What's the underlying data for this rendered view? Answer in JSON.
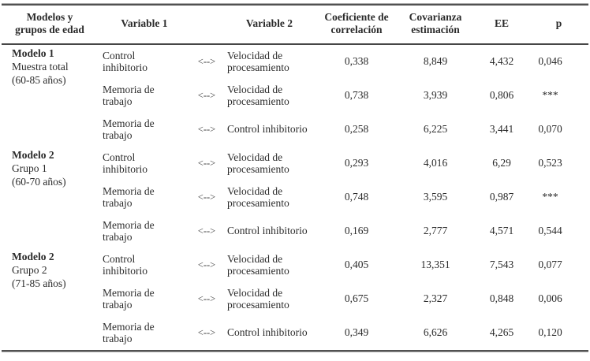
{
  "table": {
    "columns": [
      {
        "key": "model",
        "label": "Modelos y\ngrupos de edad"
      },
      {
        "key": "var1",
        "label": "Variable 1"
      },
      {
        "key": "arrow",
        "label": ""
      },
      {
        "key": "var2",
        "label": "Variable 2"
      },
      {
        "key": "coef",
        "label": "Coeficiente de\ncorrelación"
      },
      {
        "key": "cov",
        "label": "Covarianza\nestimación"
      },
      {
        "key": "ee",
        "label": "EE"
      },
      {
        "key": "p",
        "label": "p"
      }
    ],
    "arrow_glyph": "<-->",
    "groups": [
      {
        "model_lines": [
          "Modelo 1",
          "Muestra total",
          "(60-85 años)"
        ],
        "rows": [
          {
            "var1": "Control\ninhibitorio",
            "var2": "Velocidad de\nprocesamiento",
            "coef": "0,338",
            "cov": "8,849",
            "ee": "4,432",
            "p": "0,046"
          },
          {
            "var1": "Memoria de\ntrabajo",
            "var2": "Velocidad de\nprocesamiento",
            "coef": "0,738",
            "cov": "3,939",
            "ee": "0,806",
            "p": "***"
          },
          {
            "var1": "Memoria de\ntrabajo",
            "var2": "Control inhibitorio",
            "coef": "0,258",
            "cov": "6,225",
            "ee": "3,441",
            "p": "0,070"
          }
        ]
      },
      {
        "model_lines": [
          "Modelo 2",
          "Grupo 1",
          "(60-70 años)"
        ],
        "rows": [
          {
            "var1": "Control\ninhibitorio",
            "var2": "Velocidad de\nprocesamiento",
            "coef": "0,293",
            "cov": "4,016",
            "ee": "6,29",
            "p": "0,523"
          },
          {
            "var1": "Memoria de\ntrabajo",
            "var2": "Velocidad de\nprocesamiento",
            "coef": "0,748",
            "cov": "3,595",
            "ee": "0,987",
            "p": "***"
          },
          {
            "var1": "Memoria de\ntrabajo",
            "var2": "Control inhibitorio",
            "coef": "0,169",
            "cov": "2,777",
            "ee": "4,571",
            "p": "0,544"
          }
        ]
      },
      {
        "model_lines": [
          "Modelo 2",
          "Grupo 2",
          "(71-85 años)"
        ],
        "rows": [
          {
            "var1": "Control\ninhibitorio",
            "var2": "Velocidad de\nprocesamiento",
            "coef": "0,405",
            "cov": "13,351",
            "ee": "7,543",
            "p": "0,077"
          },
          {
            "var1": "Memoria de\ntrabajo",
            "var2": "Velocidad de\nprocesamiento",
            "coef": "0,675",
            "cov": "2,327",
            "ee": "0,848",
            "p": "0,006"
          },
          {
            "var1": "Memoria de\ntrabajo",
            "var2": "Control inhibitorio",
            "coef": "0,349",
            "cov": "6,626",
            "ee": "4,265",
            "p": "0,120"
          }
        ]
      }
    ]
  }
}
